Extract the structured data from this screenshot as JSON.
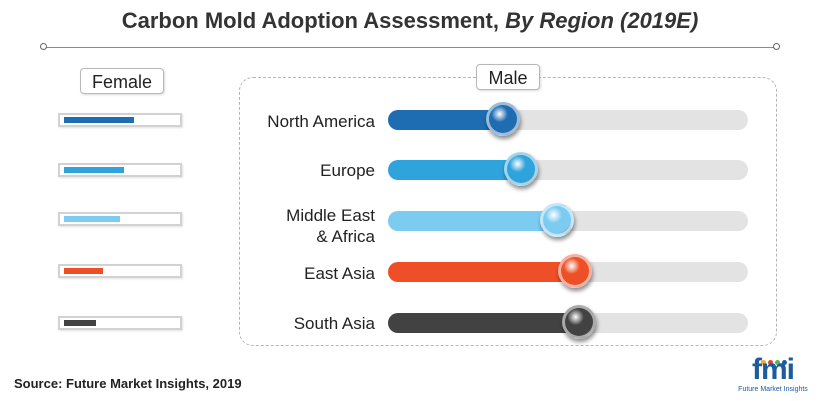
{
  "title": {
    "main": "Carbon Mold Adoption Assessment, ",
    "italic": "By Region (2019E)"
  },
  "source": "Source: Future Market Insights, 2019",
  "logo": {
    "text": "fmi",
    "subtext": "Future Market Insights"
  },
  "colors": {
    "north_america": "#1e6cb2",
    "europe": "#2fa3db",
    "middle_east_africa": "#7cccf2",
    "east_asia": "#ef4f26",
    "south_asia": "#424242",
    "track": "#e3e3e3"
  },
  "chart_data": {
    "type": "bar",
    "orientation": "horizontal",
    "title": "Carbon Mold Adoption Assessment, By Region (2019E)",
    "categories": [
      "North America",
      "Europe",
      "Middle East\n& Africa",
      "East Asia",
      "South Asia"
    ],
    "series": [
      {
        "name": "Female",
        "values": [
          60,
          52,
          48,
          34,
          28
        ]
      },
      {
        "name": "Male",
        "values": [
          32,
          37,
          47,
          52,
          53
        ]
      }
    ],
    "xlim": [
      0,
      100
    ],
    "legend": [
      "Female",
      "Male"
    ],
    "grid": false
  }
}
